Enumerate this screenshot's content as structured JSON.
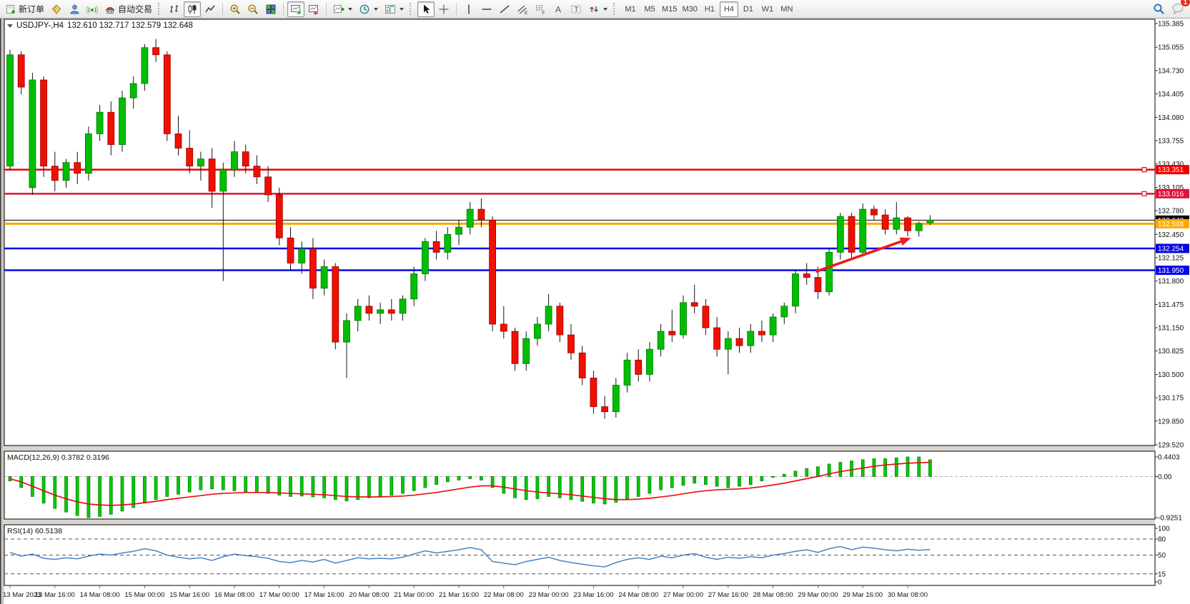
{
  "toolbar": {
    "new_order_label": "新订单",
    "autotrading_label": "自动交易",
    "timeframes": [
      "M1",
      "M5",
      "M15",
      "M30",
      "H1",
      "H4",
      "D1",
      "W1",
      "MN"
    ],
    "active_timeframe": "H4",
    "notification_badge": "1"
  },
  "chart": {
    "title_symbol": "USDJPY-,H4",
    "title_ohlc": "132.610 132.717 132.579 132.648"
  },
  "chart_data": [
    {
      "type": "candlestick",
      "symbol": "USDJPY-",
      "period": "H4",
      "ylim": [
        129.52,
        135.385
      ],
      "y_ticks": [
        "135.385",
        "135.055",
        "134.730",
        "134.405",
        "134.080",
        "133.755",
        "133.430",
        "133.105",
        "132.780",
        "132.450",
        "132.125",
        "131.800",
        "131.475",
        "131.150",
        "130.825",
        "130.500",
        "130.175",
        "129.850",
        "129.520"
      ],
      "x_labels": [
        "13 Mar 2023",
        "13 Mar 16:00",
        "14 Mar 08:00",
        "15 Mar 00:00",
        "15 Mar 16:00",
        "16 Mar 08:00",
        "17 Mar 00:00",
        "17 Mar 16:00",
        "20 Mar 08:00",
        "21 Mar 00:00",
        "21 Mar 16:00",
        "22 Mar 08:00",
        "23 Mar 00:00",
        "23 Mar 16:00",
        "24 Mar 08:00",
        "27 Mar 00:00",
        "27 Mar 16:00",
        "28 Mar 08:00",
        "29 Mar 00:00",
        "29 Mar 16:00",
        "30 Mar 08:00"
      ],
      "bars_per_label": 4,
      "up_color": "#00BE00",
      "down_color": "#F01000",
      "candles": [
        [
          133.4,
          135.02,
          133.35,
          134.95
        ],
        [
          134.95,
          135.0,
          134.4,
          134.5
        ],
        [
          133.1,
          134.7,
          133.0,
          134.6
        ],
        [
          134.6,
          134.65,
          133.25,
          133.4
        ],
        [
          133.4,
          133.6,
          133.05,
          133.2
        ],
        [
          133.2,
          133.5,
          133.1,
          133.45
        ],
        [
          133.45,
          133.6,
          133.15,
          133.3
        ],
        [
          133.3,
          133.95,
          133.2,
          133.85
        ],
        [
          133.85,
          134.25,
          133.75,
          134.15
        ],
        [
          134.15,
          134.3,
          133.55,
          133.7
        ],
        [
          133.7,
          134.45,
          133.6,
          134.35
        ],
        [
          134.35,
          134.65,
          134.2,
          134.55
        ],
        [
          134.55,
          135.1,
          134.45,
          135.05
        ],
        [
          135.05,
          135.17,
          134.85,
          134.95
        ],
        [
          134.95,
          135.0,
          133.75,
          133.85
        ],
        [
          133.85,
          134.1,
          133.55,
          133.65
        ],
        [
          133.65,
          133.9,
          133.3,
          133.4
        ],
        [
          133.4,
          133.6,
          133.2,
          133.5
        ],
        [
          133.5,
          133.65,
          132.82,
          133.05
        ],
        [
          133.05,
          133.45,
          131.8,
          133.35
        ],
        [
          133.35,
          133.75,
          133.25,
          133.6
        ],
        [
          133.6,
          133.7,
          133.3,
          133.4
        ],
        [
          133.4,
          133.55,
          133.15,
          133.25
        ],
        [
          133.25,
          133.4,
          132.9,
          133.0
        ],
        [
          133.0,
          133.1,
          132.3,
          132.4
        ],
        [
          132.4,
          132.55,
          131.95,
          132.05
        ],
        [
          132.05,
          132.35,
          131.9,
          132.25
        ],
        [
          132.25,
          132.4,
          131.55,
          131.7
        ],
        [
          131.7,
          132.1,
          131.6,
          132.0
        ],
        [
          132.0,
          132.05,
          130.85,
          130.95
        ],
        [
          130.95,
          131.35,
          130.45,
          131.25
        ],
        [
          131.25,
          131.55,
          131.1,
          131.45
        ],
        [
          131.45,
          131.6,
          131.25,
          131.35
        ],
        [
          131.35,
          131.5,
          131.2,
          131.4
        ],
        [
          131.4,
          131.55,
          131.25,
          131.35
        ],
        [
          131.35,
          131.6,
          131.25,
          131.55
        ],
        [
          131.55,
          132.0,
          131.45,
          131.9
        ],
        [
          131.9,
          132.4,
          131.8,
          132.35
        ],
        [
          132.35,
          132.5,
          132.1,
          132.2
        ],
        [
          132.2,
          132.55,
          132.1,
          132.45
        ],
        [
          132.45,
          132.65,
          132.3,
          132.55
        ],
        [
          132.55,
          132.9,
          132.45,
          132.8
        ],
        [
          132.8,
          132.95,
          132.55,
          132.65
        ],
        [
          132.65,
          132.7,
          131.1,
          131.2
        ],
        [
          131.2,
          131.45,
          131.0,
          131.1
        ],
        [
          131.1,
          131.15,
          130.55,
          130.65
        ],
        [
          130.65,
          131.1,
          130.55,
          131.0
        ],
        [
          131.0,
          131.3,
          130.9,
          131.2
        ],
        [
          131.2,
          131.62,
          131.1,
          131.45
        ],
        [
          131.45,
          131.5,
          130.95,
          131.05
        ],
        [
          131.05,
          131.2,
          130.7,
          130.8
        ],
        [
          130.8,
          130.9,
          130.35,
          130.45
        ],
        [
          130.45,
          130.55,
          129.95,
          130.05
        ],
        [
          130.05,
          130.2,
          129.88,
          129.98
        ],
        [
          129.98,
          130.45,
          129.9,
          130.35
        ],
        [
          130.35,
          130.8,
          130.25,
          130.7
        ],
        [
          130.7,
          130.85,
          130.4,
          130.5
        ],
        [
          130.5,
          130.95,
          130.4,
          130.85
        ],
        [
          130.85,
          131.2,
          130.75,
          131.1
        ],
        [
          131.1,
          131.4,
          130.95,
          131.05
        ],
        [
          131.05,
          131.6,
          131.0,
          131.5
        ],
        [
          131.5,
          131.75,
          131.35,
          131.45
        ],
        [
          131.45,
          131.55,
          131.05,
          131.15
        ],
        [
          131.15,
          131.3,
          130.75,
          130.85
        ],
        [
          130.85,
          131.1,
          130.5,
          131.0
        ],
        [
          131.0,
          131.15,
          130.8,
          130.9
        ],
        [
          130.9,
          131.2,
          130.8,
          131.1
        ],
        [
          131.1,
          131.25,
          130.95,
          131.05
        ],
        [
          131.05,
          131.35,
          130.95,
          131.3
        ],
        [
          131.3,
          131.5,
          131.2,
          131.45
        ],
        [
          131.45,
          131.95,
          131.35,
          131.9
        ],
        [
          131.9,
          132.05,
          131.75,
          131.85
        ],
        [
          131.85,
          132.0,
          131.55,
          131.65
        ],
        [
          131.65,
          132.25,
          131.6,
          132.2
        ],
        [
          132.2,
          132.75,
          132.1,
          132.7
        ],
        [
          132.7,
          132.75,
          132.1,
          132.2
        ],
        [
          132.2,
          132.88,
          132.15,
          132.8
        ],
        [
          132.8,
          132.85,
          132.65,
          132.72
        ],
        [
          132.72,
          132.8,
          132.45,
          132.52
        ],
        [
          132.52,
          132.9,
          132.45,
          132.68
        ],
        [
          132.68,
          132.7,
          132.42,
          132.5
        ],
        [
          132.5,
          132.63,
          132.42,
          132.6
        ],
        [
          132.61,
          132.717,
          132.579,
          132.648
        ]
      ],
      "hlines": [
        {
          "price": 133.351,
          "label": "133.351",
          "color": "#ef0000",
          "width": 2.5,
          "marker": true
        },
        {
          "price": 133.016,
          "label": "133.016",
          "color": "#e2103c",
          "width": 2.5,
          "marker": true
        },
        {
          "price": 132.598,
          "label": "132.598",
          "color": "#ffa800",
          "width": 3,
          "marker": false
        },
        {
          "price": 132.254,
          "label": "132.254",
          "color": "#0508e8",
          "width": 2.5,
          "marker": false
        },
        {
          "price": 131.95,
          "label": "131.950",
          "color": "#0508e8",
          "width": 2.5,
          "marker": false
        }
      ],
      "current_price": {
        "value": 132.648,
        "label": "132.648",
        "tag_bg": "#000000"
      },
      "arrow": {
        "from_bar": 71.8,
        "from_price": 131.93,
        "to_bar": 80.3,
        "to_price": 132.4,
        "color": "#ee1c1c"
      }
    },
    {
      "type": "bar",
      "name": "MACD",
      "label": "MACD(12,26,9) 0.3782 0.3196",
      "y_ticks": [
        "0.4403",
        "0.00",
        "-0.9251"
      ],
      "ylim": [
        -0.9251,
        0.4403
      ],
      "bar_color": "#00CC00",
      "signal_color": "#E81010",
      "values": [
        -0.1,
        -0.25,
        -0.45,
        -0.6,
        -0.72,
        -0.8,
        -0.88,
        -0.9251,
        -0.9,
        -0.85,
        -0.78,
        -0.7,
        -0.6,
        -0.52,
        -0.45,
        -0.4,
        -0.35,
        -0.3,
        -0.28,
        -0.3,
        -0.32,
        -0.34,
        -0.36,
        -0.38,
        -0.42,
        -0.45,
        -0.44,
        -0.46,
        -0.48,
        -0.52,
        -0.55,
        -0.52,
        -0.48,
        -0.45,
        -0.42,
        -0.38,
        -0.32,
        -0.25,
        -0.18,
        -0.12,
        -0.08,
        -0.05,
        -0.08,
        -0.25,
        -0.38,
        -0.48,
        -0.52,
        -0.5,
        -0.45,
        -0.48,
        -0.52,
        -0.56,
        -0.6,
        -0.62,
        -0.58,
        -0.5,
        -0.45,
        -0.38,
        -0.3,
        -0.25,
        -0.2,
        -0.15,
        -0.18,
        -0.22,
        -0.25,
        -0.22,
        -0.18,
        -0.1,
        -0.02,
        0.05,
        0.12,
        0.18,
        0.22,
        0.28,
        0.32,
        0.35,
        0.38,
        0.4,
        0.4,
        0.42,
        0.44,
        0.4403,
        0.3782
      ],
      "signal": [
        -0.05,
        -0.12,
        -0.22,
        -0.32,
        -0.42,
        -0.5,
        -0.57,
        -0.62,
        -0.64,
        -0.65,
        -0.64,
        -0.62,
        -0.59,
        -0.56,
        -0.52,
        -0.49,
        -0.46,
        -0.43,
        -0.4,
        -0.38,
        -0.37,
        -0.36,
        -0.36,
        -0.36,
        -0.37,
        -0.38,
        -0.39,
        -0.4,
        -0.41,
        -0.43,
        -0.45,
        -0.46,
        -0.46,
        -0.46,
        -0.45,
        -0.44,
        -0.42,
        -0.39,
        -0.36,
        -0.32,
        -0.28,
        -0.24,
        -0.21,
        -0.21,
        -0.24,
        -0.28,
        -0.32,
        -0.35,
        -0.37,
        -0.39,
        -0.41,
        -0.44,
        -0.47,
        -0.5,
        -0.52,
        -0.52,
        -0.51,
        -0.49,
        -0.46,
        -0.43,
        -0.39,
        -0.35,
        -0.32,
        -0.3,
        -0.29,
        -0.28,
        -0.26,
        -0.23,
        -0.19,
        -0.15,
        -0.1,
        -0.05,
        0.0,
        0.06,
        0.11,
        0.15,
        0.19,
        0.23,
        0.26,
        0.28,
        0.3,
        0.31,
        0.3196
      ]
    },
    {
      "type": "line",
      "name": "RSI",
      "label": "RSI(14) 60.5138",
      "y_ticks": [
        "100",
        "80",
        "50",
        "15",
        "0"
      ],
      "ylim": [
        0,
        100
      ],
      "levels": [
        80,
        50,
        15
      ],
      "line_color": "#4785c7",
      "values": [
        55,
        48,
        52,
        44,
        42,
        45,
        43,
        48,
        52,
        50,
        54,
        57,
        62,
        58,
        50,
        46,
        43,
        45,
        40,
        47,
        52,
        49,
        47,
        44,
        38,
        36,
        40,
        37,
        42,
        35,
        40,
        45,
        43,
        44,
        43,
        46,
        52,
        58,
        54,
        57,
        60,
        64,
        60,
        38,
        35,
        32,
        38,
        42,
        46,
        40,
        36,
        33,
        30,
        28,
        36,
        42,
        45,
        42,
        48,
        45,
        50,
        53,
        46,
        42,
        46,
        44,
        47,
        45,
        50,
        53,
        57,
        60,
        55,
        62,
        66,
        60,
        65,
        63,
        60,
        58,
        61,
        59,
        60.51
      ]
    }
  ]
}
